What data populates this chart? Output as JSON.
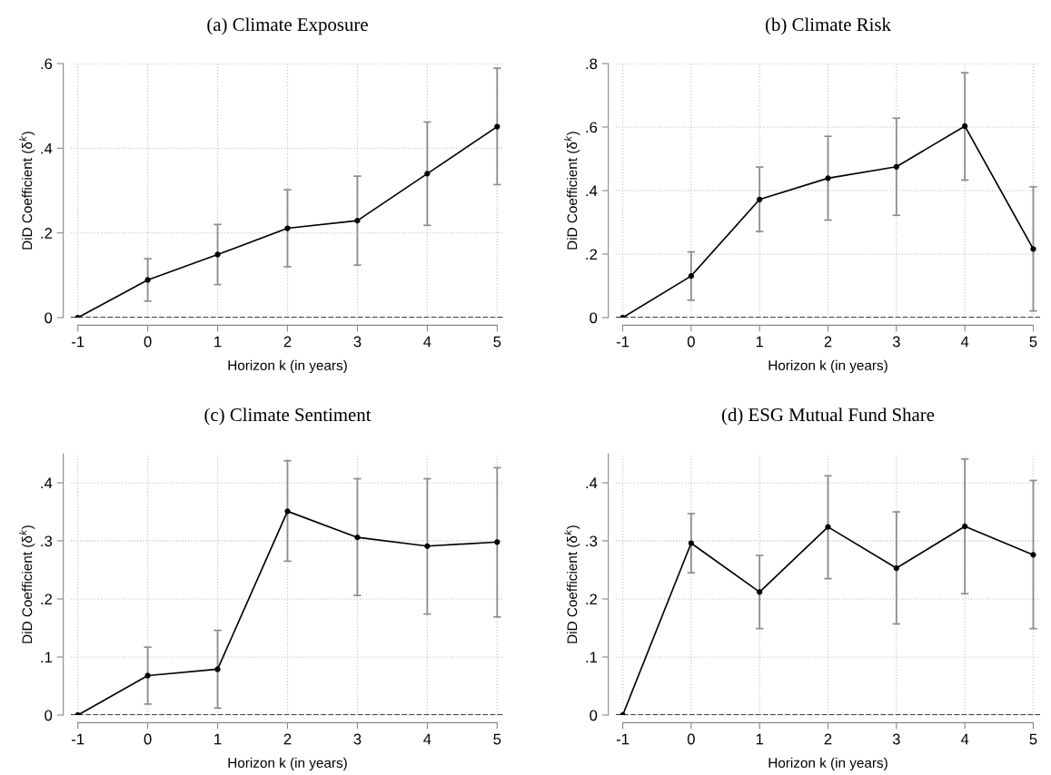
{
  "chart_data": [
    {
      "type": "line",
      "title": "(a) Climate Exposure",
      "xlabel": "Horizon k (in years)",
      "ylabel": "DiD Coefficient (δ$^{k}$)",
      "x": [
        -1,
        0,
        1,
        2,
        3,
        4,
        5
      ],
      "series": [
        {
          "color": "#000000",
          "values": [
            0,
            0.089,
            0.149,
            0.211,
            0.229,
            0.34,
            0.451
          ],
          "errors": [
            null,
            [
              0.039,
              0.139
            ],
            [
              0.078,
              0.22
            ],
            [
              0.12,
              0.302
            ],
            [
              0.124,
              0.334
            ],
            [
              0.218,
              0.462
            ],
            [
              0.314,
              0.589
            ]
          ]
        }
      ],
      "xlim": [
        -1.1,
        5.1
      ],
      "xticks": [
        -1,
        0,
        1,
        2,
        3,
        4,
        5
      ],
      "ylim": [
        0,
        0.6
      ],
      "yticks": [
        0,
        {
          "value": 0.2,
          "label": ".2"
        },
        {
          "value": 0.4,
          "label": ".4"
        },
        {
          "value": 0.6,
          "label": ".6"
        }
      ],
      "ref_lines": [
        {
          "axis": "y",
          "value": 0,
          "color": "#000000",
          "line_style": "dashed"
        }
      ],
      "grid": true,
      "marker": "circle",
      "line_style": "solid"
    },
    {
      "type": "line",
      "title": "(b) Climate Risk",
      "xlabel": "Horizon k (in years)",
      "ylabel": "DiD Coefficient (δ$^{k}$)",
      "x": [
        -1,
        0,
        1,
        2,
        3,
        4,
        5
      ],
      "series": [
        {
          "color": "#000000",
          "values": [
            0,
            0.131,
            0.372,
            0.439,
            0.475,
            0.603,
            0.216
          ],
          "errors": [
            null,
            [
              0.055,
              0.207
            ],
            [
              0.271,
              0.474
            ],
            [
              0.307,
              0.571
            ],
            [
              0.322,
              0.628
            ],
            [
              0.433,
              0.771
            ],
            [
              0.021,
              0.412
            ]
          ]
        }
      ],
      "xlim": [
        -1.1,
        5.1
      ],
      "xticks": [
        -1,
        0,
        1,
        2,
        3,
        4,
        5
      ],
      "ylim": [
        0,
        0.8
      ],
      "yticks": [
        0,
        {
          "value": 0.2,
          "label": ".2"
        },
        {
          "value": 0.4,
          "label": ".4"
        },
        {
          "value": 0.6,
          "label": ".6"
        },
        {
          "value": 0.8,
          "label": ".8"
        }
      ],
      "ref_lines": [
        {
          "axis": "y",
          "value": 0,
          "color": "#000000",
          "line_style": "dashed"
        }
      ],
      "grid": true,
      "marker": "circle",
      "line_style": "solid"
    },
    {
      "type": "line",
      "title": "(c) Climate Sentiment",
      "xlabel": "Horizon k (in years)",
      "ylabel": "DiD Coefficient (δ$^{k}$)",
      "x": [
        -1,
        0,
        1,
        2,
        3,
        4,
        5
      ],
      "series": [
        {
          "color": "#000000",
          "values": [
            0,
            0.068,
            0.079,
            0.351,
            0.306,
            0.291,
            0.298
          ],
          "errors": [
            null,
            [
              0.019,
              0.117
            ],
            [
              0.012,
              0.146
            ],
            [
              0.265,
              0.438
            ],
            [
              0.206,
              0.407
            ],
            [
              0.174,
              0.407
            ],
            [
              0.169,
              0.426
            ]
          ]
        }
      ],
      "xlim": [
        -1.1,
        5.1
      ],
      "xticks": [
        -1,
        0,
        1,
        2,
        3,
        4,
        5
      ],
      "ylim": [
        0,
        0.45
      ],
      "yticks": [
        0,
        {
          "value": 0.1,
          "label": ".1"
        },
        {
          "value": 0.2,
          "label": ".2"
        },
        {
          "value": 0.3,
          "label": ".3"
        },
        {
          "value": 0.4,
          "label": ".4"
        }
      ],
      "ref_lines": [
        {
          "axis": "y",
          "value": 0,
          "color": "#000000",
          "line_style": "dashed"
        }
      ],
      "grid": true,
      "marker": "circle",
      "line_style": "solid"
    },
    {
      "type": "line",
      "title": "(d) ESG Mutual Fund Share",
      "xlabel": "Horizon k (in years)",
      "ylabel": "DiD Coefficient (δ$^{k}$)",
      "x": [
        -1,
        0,
        1,
        2,
        3,
        4,
        5
      ],
      "series": [
        {
          "color": "#000000",
          "values": [
            0,
            0.296,
            0.212,
            0.324,
            0.253,
            0.325,
            0.276
          ],
          "errors": [
            null,
            [
              0.245,
              0.347
            ],
            [
              0.149,
              0.275
            ],
            [
              0.235,
              0.412
            ],
            [
              0.157,
              0.35
            ],
            [
              0.209,
              0.441
            ],
            [
              0.149,
              0.404
            ]
          ]
        }
      ],
      "xlim": [
        -1.1,
        5.1
      ],
      "xticks": [
        -1,
        0,
        1,
        2,
        3,
        4,
        5
      ],
      "ylim": [
        0,
        0.45
      ],
      "yticks": [
        0,
        {
          "value": 0.1,
          "label": ".1"
        },
        {
          "value": 0.2,
          "label": ".2"
        },
        {
          "value": 0.3,
          "label": ".3"
        },
        {
          "value": 0.4,
          "label": ".4"
        }
      ],
      "ref_lines": [
        {
          "axis": "y",
          "value": 0,
          "color": "#000000",
          "line_style": "dashed"
        }
      ],
      "grid": true,
      "marker": "circle",
      "line_style": "solid"
    }
  ]
}
